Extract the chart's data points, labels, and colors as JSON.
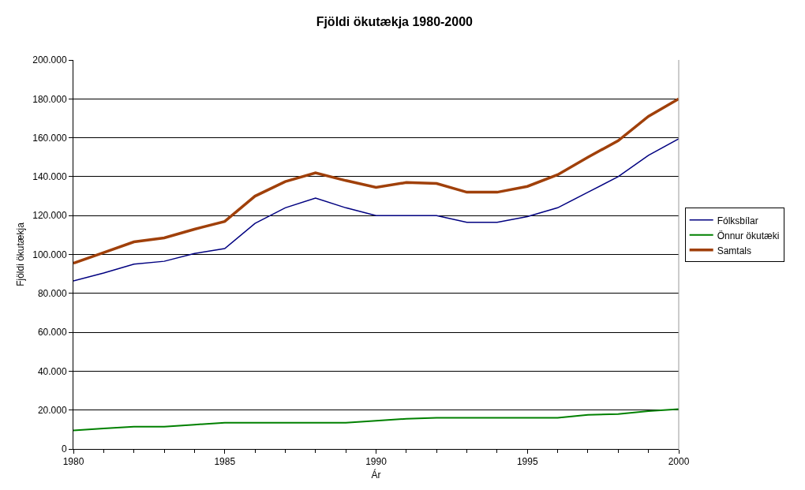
{
  "chart_data": {
    "type": "line",
    "title": "Fjöldi ökutækja 1980-2000",
    "xlabel": "Ár",
    "ylabel": "Fjöldi ökutækja",
    "x": [
      1980,
      1981,
      1982,
      1983,
      1984,
      1985,
      1986,
      1987,
      1988,
      1989,
      1990,
      1991,
      1992,
      1993,
      1994,
      1995,
      1996,
      1997,
      1998,
      1999,
      2000
    ],
    "series": [
      {
        "name": "Fólksbílar",
        "color": "#000080",
        "values": [
          86400,
          90500,
          95000,
          96500,
          100500,
          103000,
          116000,
          124000,
          129000,
          124000,
          120000,
          120000,
          120000,
          116500,
          116500,
          119500,
          124000,
          132000,
          140000,
          151000,
          159500
        ]
      },
      {
        "name": "Önnur ökutæki",
        "color": "#008000",
        "values": [
          9500,
          10500,
          11500,
          11500,
          12500,
          13500,
          13500,
          13500,
          13500,
          13500,
          14500,
          15500,
          16000,
          16000,
          16000,
          16000,
          16000,
          17500,
          18000,
          19500,
          20500
        ]
      },
      {
        "name": "Samtals",
        "color": "#a0400a",
        "values": [
          95500,
          101000,
          106500,
          108500,
          113000,
          117000,
          130000,
          137500,
          142000,
          138000,
          134500,
          137000,
          136500,
          132000,
          132000,
          135000,
          141000,
          150000,
          158500,
          171000,
          180000
        ]
      }
    ],
    "xlim": [
      1980,
      2000
    ],
    "xticks": [
      1980,
      1985,
      1990,
      1995,
      2000
    ],
    "ylim": [
      0,
      200000
    ],
    "yticks": [
      {
        "value": 0,
        "label": "0"
      },
      {
        "value": 20000,
        "label": "20.000"
      },
      {
        "value": 40000,
        "label": "40.000"
      },
      {
        "value": 60000,
        "label": "60.000"
      },
      {
        "value": 80000,
        "label": "80.000"
      },
      {
        "value": 100000,
        "label": "100.000"
      },
      {
        "value": 120000,
        "label": "120.000"
      },
      {
        "value": 140000,
        "label": "140.000"
      },
      {
        "value": 160000,
        "label": "160.000"
      },
      {
        "value": 180000,
        "label": "180.000"
      },
      {
        "value": 200000,
        "label": "200.000"
      }
    ],
    "grid": "y",
    "legend": "right",
    "marker": "none",
    "line_style": "solid"
  }
}
